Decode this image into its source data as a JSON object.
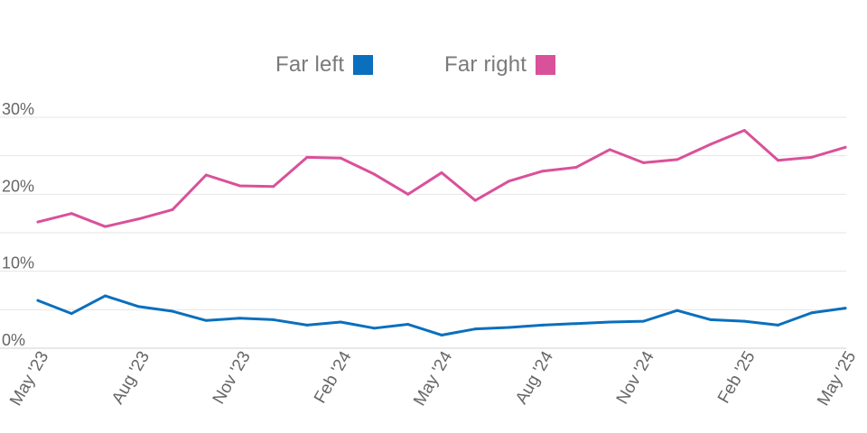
{
  "chart_data": {
    "type": "line",
    "title": "",
    "xlabel": "",
    "ylabel": "",
    "x": [
      "May '23",
      "Jun '23",
      "Jul '23",
      "Aug '23",
      "Sep '23",
      "Oct '23",
      "Nov '23",
      "Dec '23",
      "Jan '24",
      "Feb '24",
      "Mar '24",
      "Apr '24",
      "May '24",
      "Jun '24",
      "Jul '24",
      "Aug '24",
      "Sep '24",
      "Oct '24",
      "Nov '24",
      "Dec '24",
      "Jan '25",
      "Feb '25",
      "Mar '25",
      "Apr '25",
      "May '25"
    ],
    "x_tick_labels": [
      "May '23",
      "Aug '23",
      "Nov '23",
      "Feb '24",
      "May '24",
      "Aug '24",
      "Nov '24",
      "Feb '25",
      "May '25"
    ],
    "y_ticks": [
      {
        "value": 0,
        "label": "0%"
      },
      {
        "value": 10,
        "label": "10%"
      },
      {
        "value": 20,
        "label": "20%"
      },
      {
        "value": 30,
        "label": "30%"
      }
    ],
    "ylim": [
      0,
      30
    ],
    "grid": true,
    "legend_position": "top-center",
    "series": [
      {
        "name": "Far left",
        "color": "#0a6fbd",
        "values": [
          6.2,
          4.5,
          6.8,
          5.4,
          4.8,
          3.6,
          3.9,
          3.7,
          3.0,
          3.4,
          2.6,
          3.1,
          1.7,
          2.5,
          2.7,
          3.0,
          3.2,
          3.4,
          3.5,
          4.9,
          3.7,
          3.5,
          3.0,
          4.6,
          5.2
        ]
      },
      {
        "name": "Far right",
        "color": "#d9519a",
        "values": [
          16.4,
          17.5,
          15.8,
          16.8,
          18.0,
          22.5,
          21.1,
          21.0,
          24.8,
          24.7,
          22.6,
          20.0,
          22.8,
          19.2,
          21.7,
          23.0,
          23.5,
          25.8,
          24.1,
          24.5,
          26.5,
          28.3,
          24.4,
          24.8,
          26.1
        ]
      }
    ]
  }
}
